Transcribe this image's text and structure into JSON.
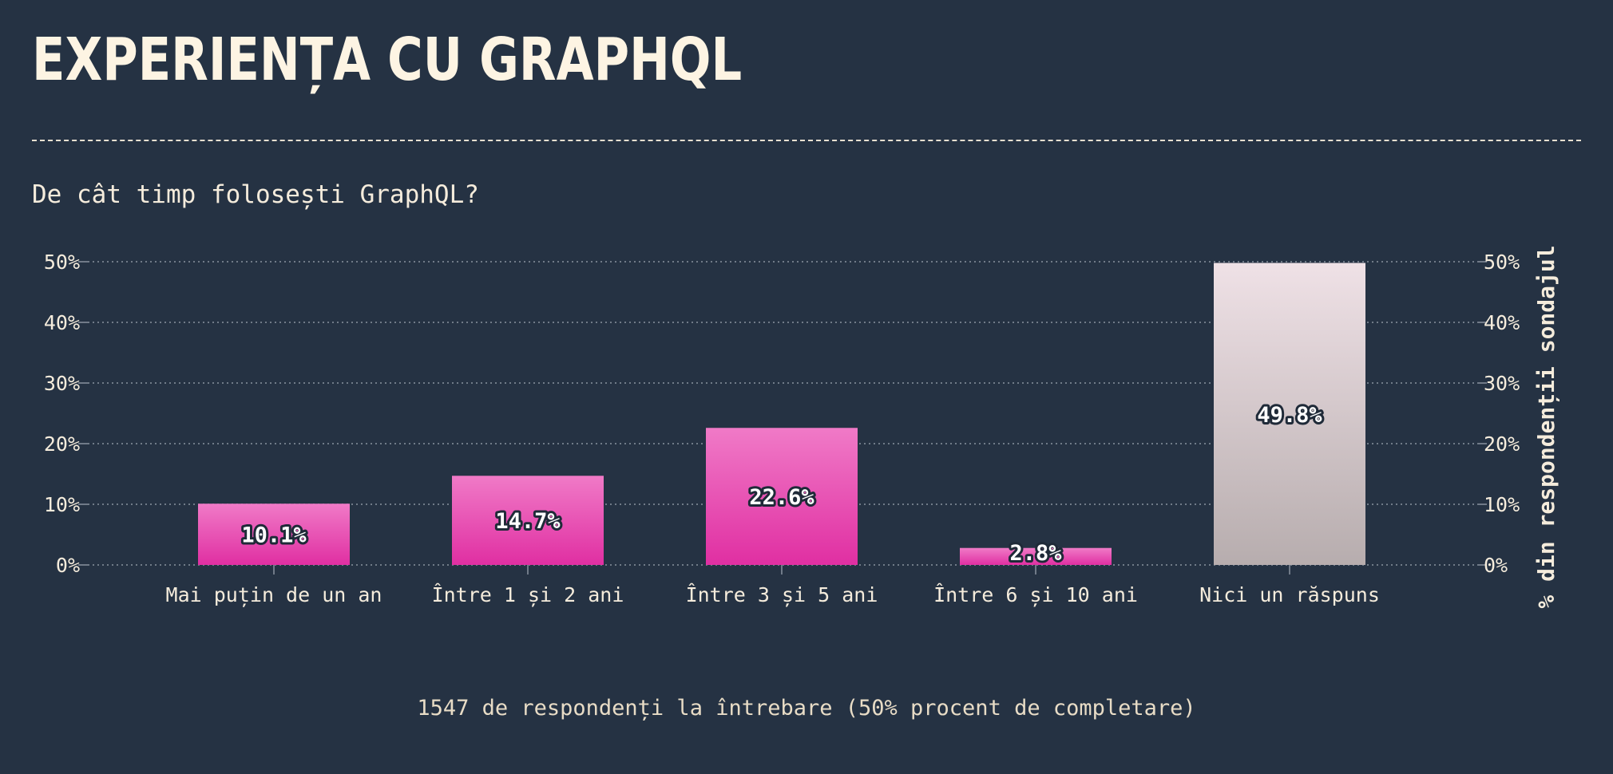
{
  "header": {
    "title": "EXPERIENȚA CU GRAPHQL",
    "question": "De cât timp folosești GraphQL?"
  },
  "footer": {
    "respondents": "1547 de respondenți la întrebare (50% procent de completare)"
  },
  "colors": {
    "background": "#253243",
    "bar_top": "#f07ac7",
    "bar_bottom": "#e02fa2",
    "no_answer_top": "#efe1e6",
    "no_answer_bottom": "#b7adae",
    "text": "#f5ecdc"
  },
  "chart_data": {
    "type": "bar",
    "categories": [
      "Mai puțin de un an",
      "Între 1 și 2 ani",
      "Între 3 și 5 ani",
      "Între 6 și 10 ani",
      "Nici un răspuns"
    ],
    "values": [
      10.1,
      14.7,
      22.6,
      2.8,
      49.8
    ],
    "data_labels": [
      "10.1%",
      "14.7%",
      "22.6%",
      "2.8%",
      "49.8%"
    ],
    "ylabel": "% din respondenții sondajul",
    "ylim": [
      0,
      50
    ],
    "yticks": [
      0,
      10,
      20,
      30,
      40,
      50
    ],
    "ytick_labels": [
      "0%",
      "10%",
      "20%",
      "30%",
      "40%",
      "50%"
    ],
    "grid": true,
    "axis_position": "left-and-right"
  }
}
